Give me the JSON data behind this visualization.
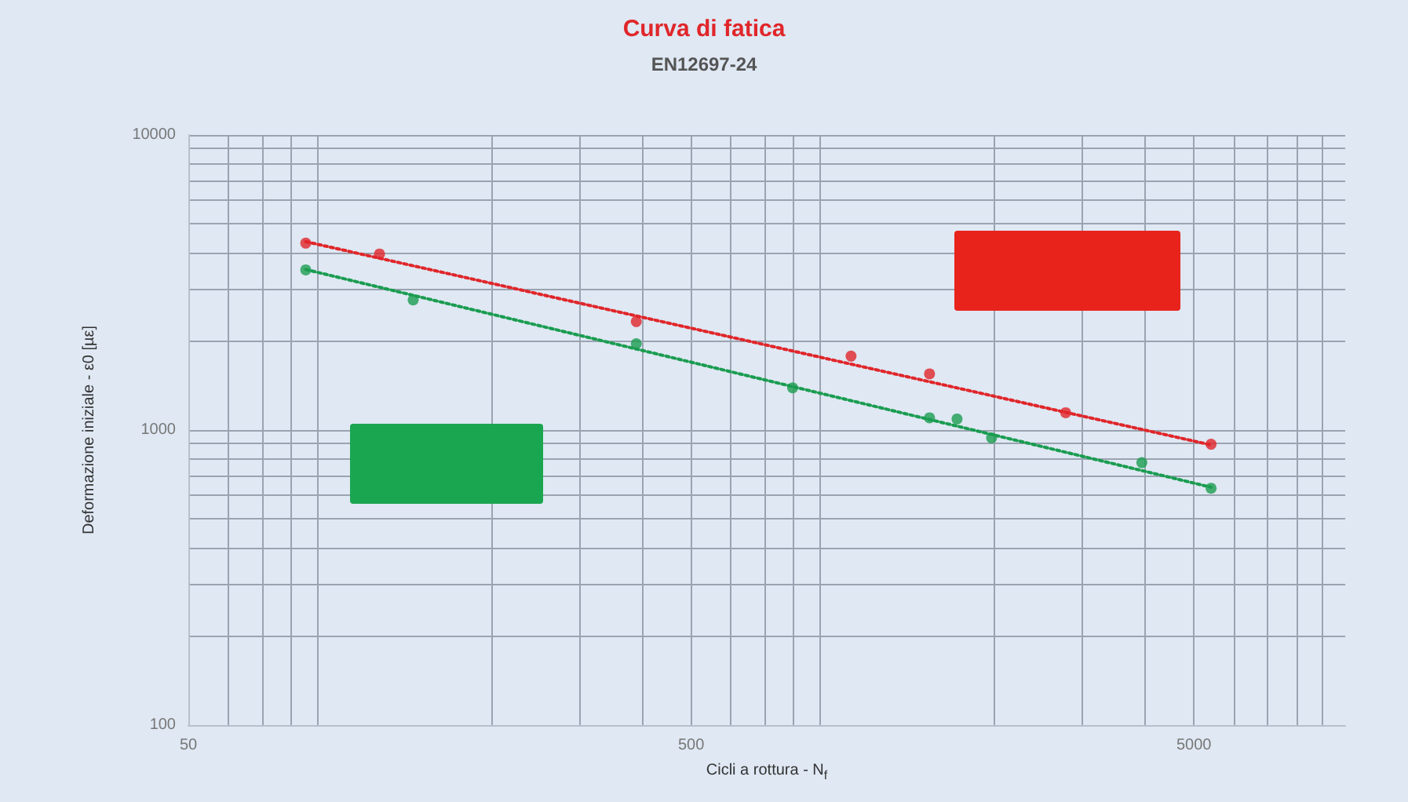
{
  "chart_data": {
    "type": "scatter",
    "title": "Curva di fatica",
    "subtitle": "EN12697-24",
    "xlabel": "Cicli a rottura - N$_{f}$",
    "ylabel": "Deformazione iniziale - ε0 [µε]",
    "log": "xy",
    "xlim": [
      50,
      10000
    ],
    "xticks": [
      50,
      500,
      5000
    ],
    "ylim": [
      100,
      10000
    ],
    "yticks": [
      100,
      1000,
      10000
    ],
    "grid": true,
    "marker": "circle",
    "series": [
      {
        "color": "#e0262a",
        "x": [
          85.6,
          120,
          389,
          1040,
          1490,
          2780,
          5410
        ],
        "values": [
          4300,
          3950,
          2330,
          1780,
          1550,
          1145,
          895
        ]
      },
      {
        "color": "#1a9c50",
        "x": [
          85.6,
          140,
          389,
          796,
          1490,
          1690,
          1980,
          3940,
          5410
        ],
        "values": [
          3490,
          2760,
          1960,
          1390,
          1100,
          1090,
          940,
          775,
          635
        ]
      },
      {
        "type": "line",
        "color": "#e0262a",
        "line_style": "dotted",
        "marker": "none",
        "x": [
          85.6,
          5410
        ],
        "values": [
          4350,
          890
        ]
      },
      {
        "type": "line",
        "color": "#1a9c50",
        "line_style": "dotted",
        "marker": "none",
        "x": [
          85.6,
          5410
        ],
        "values": [
          3500,
          640
        ]
      }
    ]
  }
}
